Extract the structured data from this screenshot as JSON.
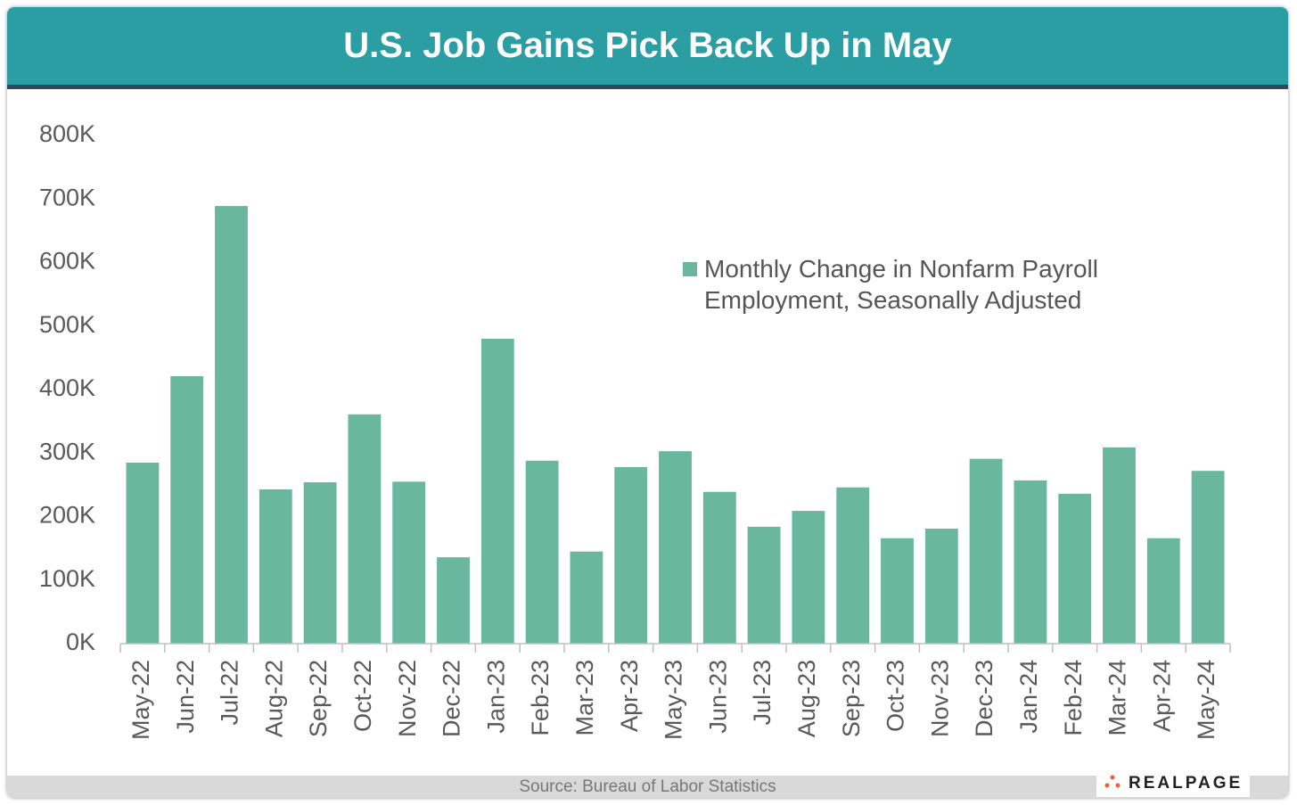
{
  "chart_data": {
    "type": "bar",
    "title": "U.S. Job Gains Pick Back Up in May",
    "categories": [
      "May-22",
      "Jun-22",
      "Jul-22",
      "Aug-22",
      "Sep-22",
      "Oct-22",
      "Nov-22",
      "Dec-22",
      "Jan-23",
      "Feb-23",
      "Mar-23",
      "Apr-23",
      "May-23",
      "Jun-23",
      "Jul-23",
      "Aug-23",
      "Sep-23",
      "Oct-23",
      "Nov-23",
      "Dec-23",
      "Jan-24",
      "Feb-24",
      "Mar-24",
      "Apr-24",
      "May-24"
    ],
    "series": [
      {
        "name": "Monthly Change in Nonfarm Payroll Employment, Seasonally Adjusted",
        "color": "#69b89e",
        "values": [
          285000,
          421000,
          689000,
          243000,
          254000,
          361000,
          255000,
          136000,
          480000,
          288000,
          145000,
          278000,
          303000,
          239000,
          184000,
          209000,
          246000,
          166000,
          181000,
          291000,
          257000,
          236000,
          309000,
          166000,
          272000
        ]
      }
    ],
    "ylim": [
      0,
      800000
    ],
    "yticks": [
      {
        "value": 0,
        "label": "0K"
      },
      {
        "value": 100000,
        "label": "100K"
      },
      {
        "value": 200000,
        "label": "200K"
      },
      {
        "value": 300000,
        "label": "300K"
      },
      {
        "value": 400000,
        "label": "400K"
      },
      {
        "value": 500000,
        "label": "500K"
      },
      {
        "value": 600000,
        "label": "600K"
      },
      {
        "value": 700000,
        "label": "700K"
      },
      {
        "value": 800000,
        "label": "800K"
      }
    ],
    "grid": false,
    "legend": "upper right",
    "source": "Source: Bureau of Labor Statistics",
    "logo": "REALPAGE"
  }
}
